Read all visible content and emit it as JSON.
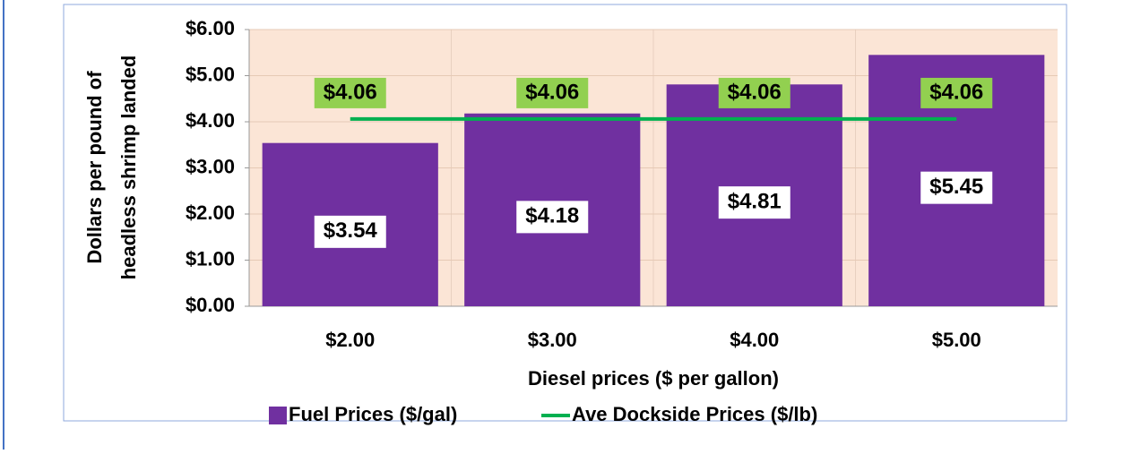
{
  "chart_data": {
    "type": "bar",
    "x_label": "Diesel prices ($ per gallon)",
    "y_label": [
      "Dollars per pound of",
      "headless shrimp landed"
    ],
    "categories": [
      "$2.00",
      "$3.00",
      "$4.00",
      "$5.00"
    ],
    "series": [
      {
        "name": "Fuel Prices ($/gal)",
        "type": "bar",
        "color": "#7030a0",
        "values": [
          3.54,
          4.18,
          4.81,
          5.45
        ],
        "value_labels": [
          "$3.54",
          "$4.18",
          "$4.81",
          "$5.45"
        ]
      },
      {
        "name": "Ave Dockside Prices ($/lb)",
        "type": "line",
        "color": "#00b050",
        "values": [
          4.06,
          4.06,
          4.06,
          4.06
        ],
        "value_labels": [
          "$4.06",
          "$4.06",
          "$4.06",
          "$4.06"
        ]
      }
    ],
    "ylim": [
      0,
      6
    ],
    "yticks": [
      {
        "value": 0,
        "label": "$0.00"
      },
      {
        "value": 1,
        "label": "$1.00"
      },
      {
        "value": 2,
        "label": "$2.00"
      },
      {
        "value": 3,
        "label": "$3.00"
      },
      {
        "value": 4,
        "label": "$4.00"
      },
      {
        "value": 5,
        "label": "$5.00"
      },
      {
        "value": 6,
        "label": "$6.00"
      }
    ],
    "grid": true,
    "legend": "bottom"
  }
}
